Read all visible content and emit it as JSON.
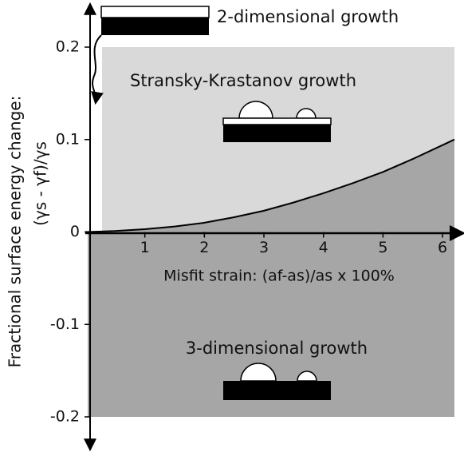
{
  "chart_data": {
    "type": "line",
    "y_label": [
      "Fractional surface energy change:",
      "(γs - γf)/γs"
    ],
    "x_label": "Misfit strain:  (af-as)/as  x 100%",
    "annotations": [
      "2-dimensional growth",
      "Stransky-Krastanov growth",
      "3-dimensional growth"
    ],
    "x": [
      0,
      0.5,
      1,
      1.5,
      2,
      2.5,
      3,
      3.5,
      4,
      4.5,
      5,
      5.5,
      6,
      6.2
    ],
    "values": [
      0,
      0.001,
      0.003,
      0.006,
      0.01,
      0.016,
      0.023,
      0.032,
      0.042,
      0.053,
      0.065,
      0.079,
      0.094,
      0.1
    ],
    "color": "#000000",
    "fill_above": "#d9d9d9",
    "fill_below": "#a6a6a6",
    "xlim": [
      0,
      6.2
    ],
    "ylim": [
      -0.2,
      0.2
    ],
    "xticks": [
      1,
      2,
      3,
      4,
      5,
      6
    ],
    "yticks": [
      0.2,
      0.1,
      0,
      -0.1,
      -0.2
    ]
  }
}
